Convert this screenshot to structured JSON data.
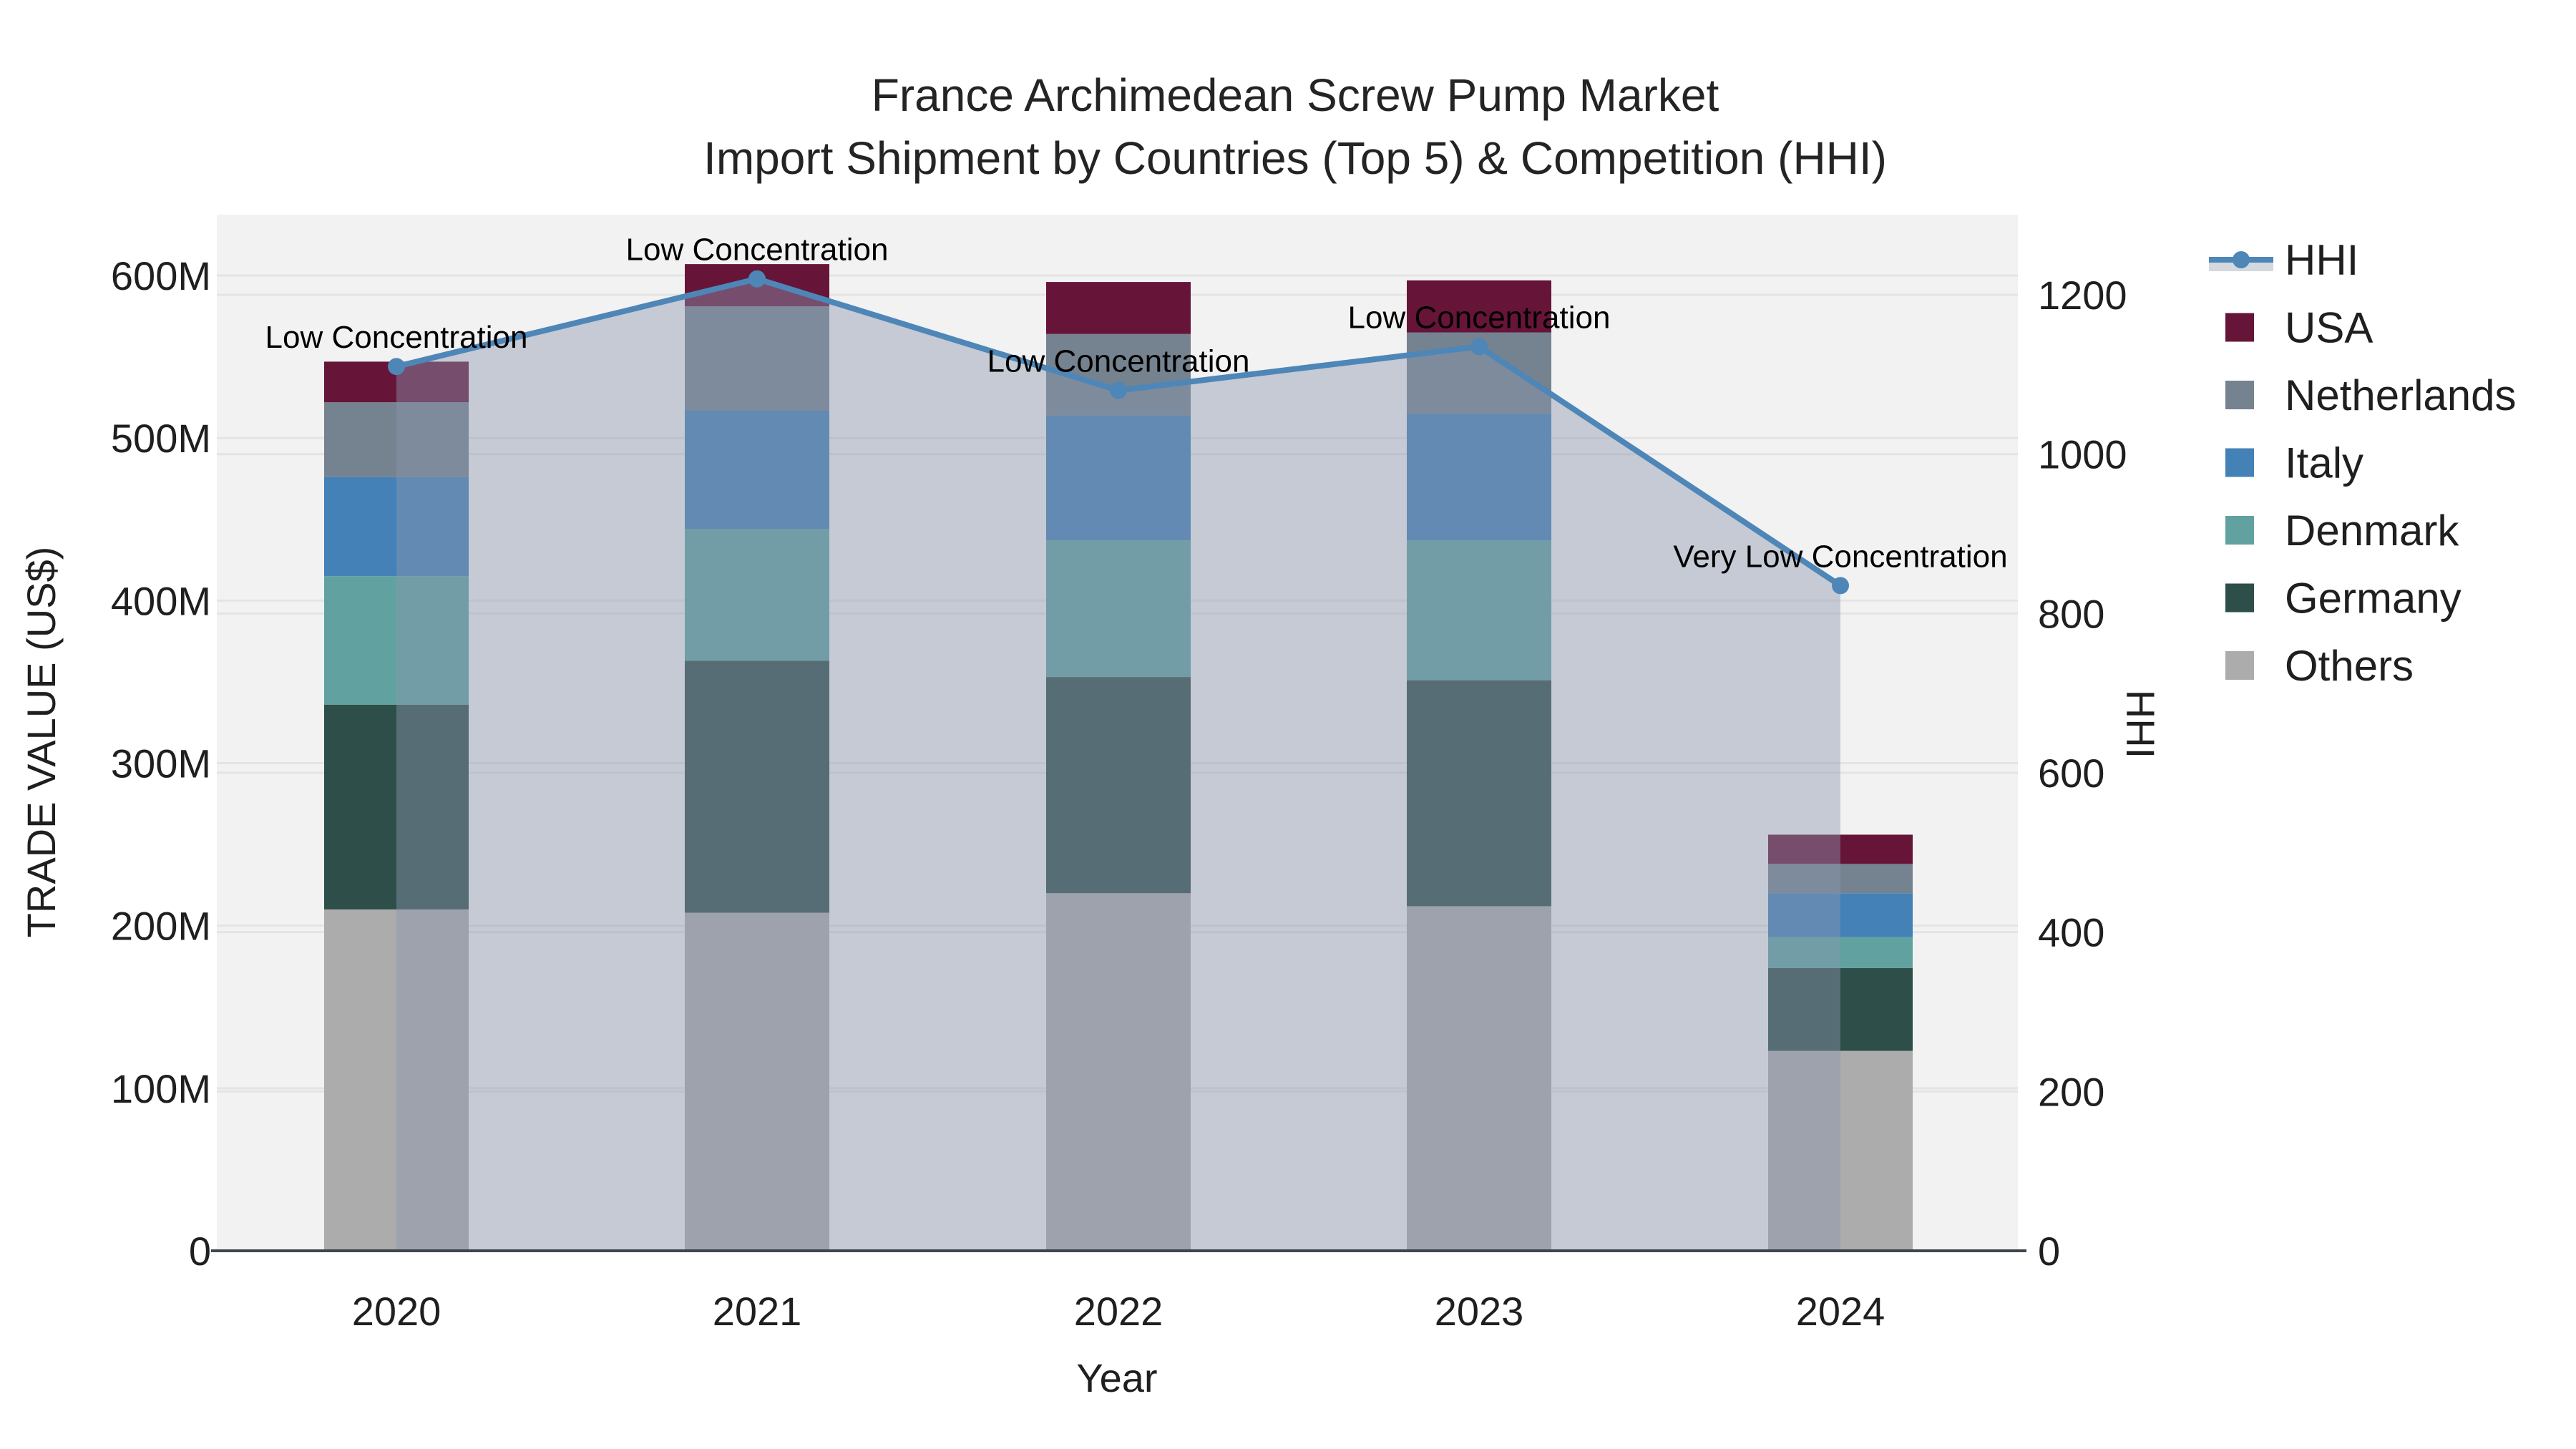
{
  "title": {
    "line1": "France Archimedean Screw Pump Market",
    "line2": "Import Shipment by Countries (Top 5) & Competition (HHI)"
  },
  "axes": {
    "x": {
      "title": "Year",
      "ticks": [
        "2020",
        "2021",
        "2022",
        "2023",
        "2024"
      ]
    },
    "y_left": {
      "title": "TRADE VALUE (US$)",
      "ticks": [
        "0",
        "100M",
        "200M",
        "300M",
        "400M",
        "500M",
        "600M"
      ],
      "max": 600
    },
    "y_right": {
      "title": "HHI",
      "ticks": [
        "0",
        "200",
        "400",
        "600",
        "800",
        "1000",
        "1200"
      ],
      "max": 1200
    }
  },
  "legend": {
    "items": [
      "HHI",
      "USA",
      "Netherlands",
      "Italy",
      "Denmark",
      "Germany",
      "Others"
    ]
  },
  "colors": {
    "usa": "#661539",
    "netherlands": "#75828F",
    "italy": "#4381B7",
    "denmark": "#61A2A1",
    "germany": "#2E4E4A",
    "others": "#ABACAB",
    "hhi_line": "#4E86B8",
    "hhi_fill": "rgba(138,150,172,0.44)",
    "legend_band": "#D4D9DF",
    "plot_bg": "#F2F2F2",
    "gridline": "#E4E4E4",
    "axis_line": "#3F464C"
  },
  "chart_data": {
    "type": "bar",
    "subtype": "stacked-bars-with-line",
    "categories": [
      "2020",
      "2021",
      "2022",
      "2023",
      "2024"
    ],
    "series": [
      {
        "name": "Others",
        "color_key": "others",
        "values": [
          210,
          208,
          220,
          212,
          123
        ]
      },
      {
        "name": "Germany",
        "color_key": "germany",
        "values": [
          126,
          155,
          133,
          139,
          51
        ]
      },
      {
        "name": "Denmark",
        "color_key": "denmark",
        "values": [
          79,
          81,
          84,
          86,
          19
        ]
      },
      {
        "name": "Italy",
        "color_key": "italy",
        "values": [
          61,
          73,
          77,
          78,
          27
        ]
      },
      {
        "name": "Netherlands",
        "color_key": "netherlands",
        "values": [
          46,
          64,
          50,
          50,
          18
        ]
      },
      {
        "name": "USA",
        "color_key": "usa",
        "values": [
          25,
          26,
          32,
          32,
          18
        ]
      }
    ],
    "totals": [
      547,
      607,
      596,
      597,
      256
    ],
    "line": {
      "name": "HHI",
      "values": [
        1110,
        1220,
        1080,
        1135,
        835
      ],
      "annotations": [
        "Low Concentration",
        "Low Concentration",
        "Low Concentration",
        "Low Concentration",
        "Very Low Concentration"
      ]
    },
    "title": "France Archimedean Screw Pump Market — Import Shipment by Countries (Top 5) & Competition (HHI)",
    "xlabel": "Year",
    "ylabel_left": "TRADE VALUE (US$)",
    "ylabel_right": "HHI",
    "ylim_left": [
      0,
      600
    ],
    "ylim_right": [
      0,
      1200
    ],
    "grid": true,
    "legend_position": "right"
  }
}
